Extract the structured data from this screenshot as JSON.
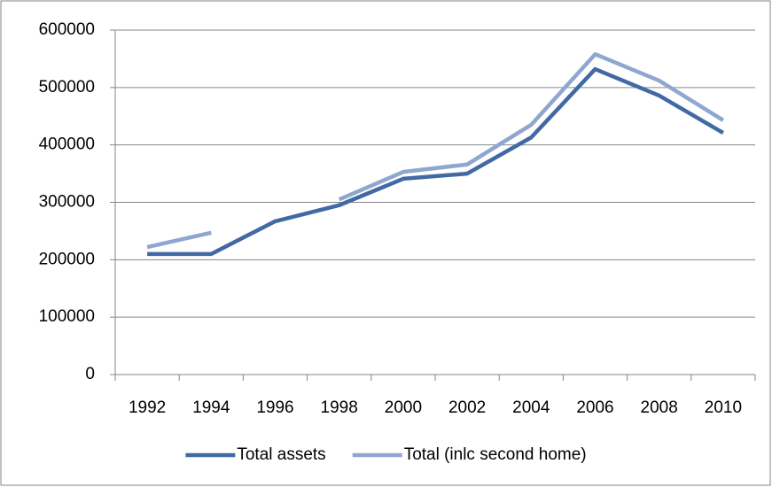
{
  "chart_data": {
    "type": "line",
    "categories": [
      "1992",
      "1994",
      "1996",
      "1998",
      "2000",
      "2002",
      "2004",
      "2006",
      "2008",
      "2010"
    ],
    "series": [
      {
        "name": "Total assets",
        "color": "#4169a4",
        "values": [
          210000,
          210000,
          267000,
          295000,
          341000,
          350000,
          413000,
          532000,
          486000,
          421000
        ]
      },
      {
        "name": "Total (inlc second home)",
        "color": "#8fa7cf",
        "values": [
          222000,
          247000,
          null,
          305000,
          353000,
          366000,
          435000,
          558000,
          512000,
          443000
        ]
      }
    ],
    "ylim": [
      0,
      600000
    ],
    "yticks": [
      0,
      100000,
      200000,
      300000,
      400000,
      500000,
      600000
    ],
    "grid": true,
    "legend": "bottom"
  }
}
